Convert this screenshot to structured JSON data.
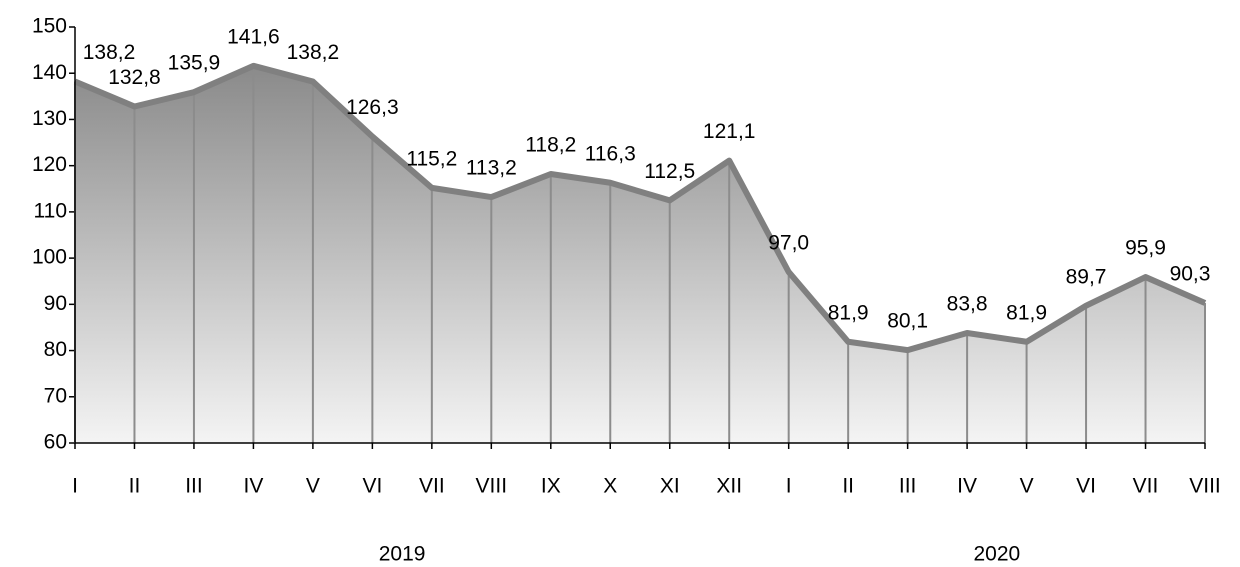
{
  "chart_data": {
    "type": "area",
    "categories": [
      "I",
      "II",
      "III",
      "IV",
      "V",
      "VI",
      "VII",
      "VIII",
      "IX",
      "X",
      "XI",
      "XII",
      "I",
      "II",
      "III",
      "IV",
      "V",
      "VI",
      "VII",
      "VIII"
    ],
    "x_groups": [
      "2019",
      "2020"
    ],
    "values": [
      138.2,
      132.8,
      135.9,
      141.6,
      138.2,
      126.3,
      115.2,
      113.2,
      118.2,
      116.3,
      112.5,
      121.1,
      97.0,
      81.9,
      80.1,
      83.8,
      81.9,
      89.7,
      95.9,
      90.3
    ],
    "value_labels": [
      "138,2",
      "132,8",
      "135,9",
      "141,6",
      "138,2",
      "126,3",
      "115,2",
      "113,2",
      "118,2",
      "116,3",
      "112,5",
      "121,1",
      "97,0",
      "81,9",
      "80,1",
      "83,8",
      "81,9",
      "89,7",
      "95,9",
      "90,3"
    ],
    "color": "#808080",
    "ylim": [
      60,
      150
    ],
    "yticks": [
      60,
      70,
      80,
      90,
      100,
      110,
      120,
      130,
      140,
      150
    ]
  }
}
